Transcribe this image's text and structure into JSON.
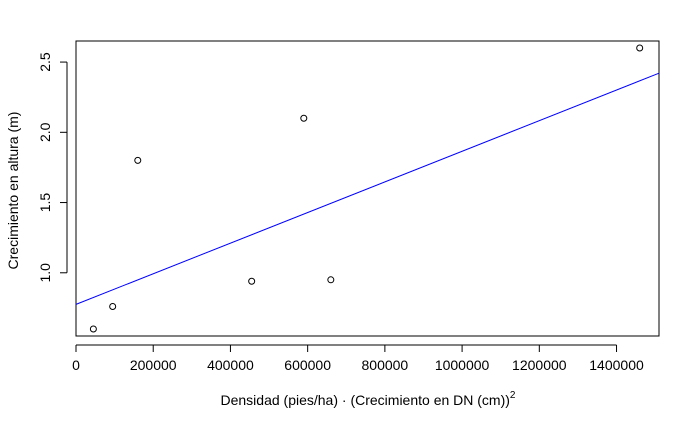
{
  "chart_data": {
    "type": "scatter",
    "title": "",
    "xlabel": "Densidad (pies/ha) · (Crecimiento en DN (cm))",
    "xlabel_superscript": "2",
    "ylabel": "Crecimiento en altura (m)",
    "xlim": [
      0,
      1510000
    ],
    "ylim": [
      0.55,
      2.65
    ],
    "xticks": [
      0,
      200000,
      400000,
      600000,
      800000,
      1000000,
      1200000,
      1400000
    ],
    "xtick_labels": [
      "0",
      "200000",
      "400000",
      "600000",
      "800000",
      "1000000",
      "1200000",
      "1400000"
    ],
    "yticks": [
      1.0,
      1.5,
      2.0,
      2.5
    ],
    "ytick_labels": [
      "1.0",
      "1.5",
      "2.0",
      "2.5"
    ],
    "grid": false,
    "legend": "none",
    "points": [
      {
        "x": 45000,
        "y": 0.6
      },
      {
        "x": 95000,
        "y": 0.76
      },
      {
        "x": 160000,
        "y": 1.8
      },
      {
        "x": 455000,
        "y": 0.94
      },
      {
        "x": 590000,
        "y": 2.1
      },
      {
        "x": 660000,
        "y": 0.95
      },
      {
        "x": 1460000,
        "y": 2.6
      }
    ],
    "fit_line": {
      "intercept": 0.775,
      "slope": 1.09e-06,
      "color": "#0000ff"
    },
    "point_color": "#000000"
  }
}
